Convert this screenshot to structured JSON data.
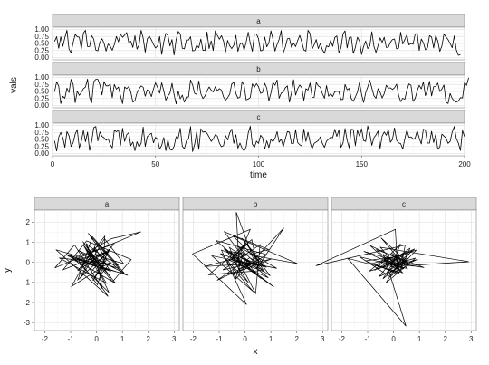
{
  "chart_data": [
    {
      "type": "line",
      "facet_layout": "stacked-rows",
      "xlabel": "time",
      "ylabel": "vals",
      "xlim": [
        0,
        200
      ],
      "ylim": [
        0,
        1
      ],
      "x_ticks": [
        0,
        50,
        100,
        150,
        200
      ],
      "y_ticks": [
        0.0,
        0.25,
        0.5,
        0.75,
        1.0
      ],
      "y_tick_labels": [
        "0.00",
        "0.25",
        "0.50",
        "0.75",
        "1.00"
      ],
      "grid": true,
      "series": [
        {
          "name": "a",
          "x_start": 1,
          "values": [
            0.57,
            0.74,
            0.33,
            0.74,
            0.4,
            0.71,
            0.97,
            0.3,
            0.17,
            0.53,
            0.82,
            0.74,
            0.72,
            0.31,
            0.87,
            0.97,
            0.39,
            0.39,
            0.78,
            0.66,
            0.27,
            0.24,
            0.55,
            0.67,
            0.51,
            0.23,
            0.48,
            0.4,
            0.26,
            0.46,
            0.75,
            0.56,
            0.83,
            0.72,
            0.8,
            0.89,
            0.54,
            0.58,
            0.36,
            0.78,
            0.3,
            0.45,
            0.97,
            0.69,
            0.19,
            0.66,
            0.76,
            0.63,
            0.47,
            0.34,
            0.42,
            0.75,
            0.11,
            0.56,
            0.86,
            0.79,
            0.41,
            0.64,
            0.09,
            0.64,
            0.93,
            0.84,
            0.33,
            0.31,
            0.63,
            0.62,
            0.74,
            0.24,
            0.25,
            0.44,
            0.35,
            0.66,
            0.26,
            0.25,
            0.91,
            0.32,
            0.59,
            0.25,
            0.95,
            0.79,
            0.65,
            0.78,
            0.59,
            0.2,
            0.61,
            0.42,
            0.32,
            0.44,
            0.79,
            0.22,
            0.47,
            0.53,
            0.26,
            0.55,
            0.9,
            0.51,
            0.22,
            0.83,
            0.84,
            0.66,
            0.24,
            0.26,
            0.73,
            0.38,
            0.52,
            0.95,
            0.65,
            0.23,
            0.46,
            0.65,
            0.96,
            0.17,
            0.37,
            0.67,
            0.68,
            0.36,
            0.51,
            0.39,
            0.61,
            0.79,
            0.55,
            0.27,
            0.23,
            0.97,
            0.85,
            0.3,
            0.45,
            0.64,
            0.32,
            0.5,
            0.28,
            0.15,
            0.42,
            0.38,
            0.61,
            0.4,
            0.71,
            0.77,
            0.17,
            0.34,
            0.84,
            0.95,
            0.34,
            0.71,
            0.73,
            0.15,
            0.36,
            0.72,
            0.59,
            0.11,
            0.39,
            0.59,
            0.32,
            0.41,
            0.92,
            0.4,
            0.18,
            0.42,
            0.7,
            0.54,
            0.72,
            0.36,
            0.37,
            0.54,
            0.64,
            0.66,
            0.31,
            0.34,
            0.9,
            0.48,
            0.64,
            0.81,
            0.45,
            0.5,
            0.47,
            0.82,
            0.87,
            0.25,
            0.66,
            0.53,
            0.28,
            0.34,
            0.78,
            0.73,
            0.34,
            0.78,
            0.59,
            0.22,
            0.41,
            0.84,
            0.73,
            0.64,
            0.5,
            0.35,
            0.77,
            0.28,
            0.08,
            0.1
          ]
        },
        {
          "name": "b",
          "x_start": 1,
          "values": [
            0.49,
            0.84,
            0.69,
            0.07,
            0.33,
            0.26,
            0.62,
            0.46,
            0.93,
            0.76,
            0.1,
            0.51,
            0.36,
            0.47,
            0.6,
            0.66,
            0.94,
            0.29,
            0.1,
            0.85,
            0.93,
            0.93,
            0.73,
            0.38,
            0.85,
            0.7,
            0.7,
            0.76,
            0.28,
            0.75,
            0.58,
            0.66,
            0.35,
            0.07,
            0.66,
            0.6,
            0.68,
            0.48,
            0.12,
            0.18,
            0.45,
            0.59,
            0.7,
            0.65,
            0.33,
            0.56,
            0.5,
            0.32,
            0.59,
            0.81,
            0.64,
            0.44,
            0.81,
            0.52,
            0.19,
            0.34,
            0.44,
            0.79,
            0.39,
            0.06,
            0.52,
            0.24,
            0.37,
            0.12,
            0.31,
            0.3,
            0.91,
            0.73,
            0.43,
            0.4,
            0.87,
            0.42,
            0.25,
            0.34,
            0.52,
            0.66,
            0.55,
            0.48,
            0.67,
            0.52,
            0.6,
            0.55,
            0.31,
            0.19,
            0.28,
            0.4,
            0.77,
            0.82,
            0.43,
            0.26,
            0.3,
            0.85,
            0.72,
            0.2,
            0.23,
            0.29,
            0.77,
            0.65,
            0.78,
            0.67,
            0.43,
            0.47,
            0.79,
            0.62,
            0.16,
            0.44,
            0.82,
            0.72,
            0.91,
            0.26,
            0.44,
            0.48,
            0.63,
            0.7,
            0.12,
            0.46,
            0.92,
            0.37,
            0.6,
            0.73,
            0.63,
            0.18,
            0.6,
            0.55,
            0.8,
            0.3,
            0.29,
            0.82,
            0.7,
            0.65,
            0.42,
            0.26,
            0.71,
            0.33,
            0.42,
            0.32,
            0.49,
            0.51,
            0.5,
            0.21,
            0.22,
            0.75,
            0.56,
            0.61,
            0.25,
            0.15,
            0.31,
            0.48,
            0.82,
            0.4,
            0.11,
            0.45,
            0.66,
            0.9,
            0.62,
            0.35,
            0.26,
            0.6,
            0.47,
            0.27,
            0.42,
            0.72,
            0.62,
            0.63,
            0.57,
            0.63,
            0.76,
            0.36,
            0.14,
            0.26,
            0.22,
            0.54,
            0.77,
            0.72,
            0.15,
            0.25,
            0.52,
            0.72,
            0.59,
            0.84,
            0.35,
            0.55,
            0.86,
            0.34,
            0.67,
            0.68,
            0.8,
            0.5,
            0.59,
            0.73,
            0.12,
            0.07,
            0.43,
            0.25,
            0.17,
            0.12,
            0.16,
            0.28,
            0.27,
            0.82,
            0.72,
            0.99
          ]
        },
        {
          "name": "c",
          "x_start": 1,
          "values": [
            0.45,
            0.09,
            0.58,
            0.75,
            0.56,
            0.22,
            0.78,
            0.63,
            0.25,
            0.38,
            0.69,
            0.85,
            0.2,
            0.44,
            0.82,
            0.42,
            0.76,
            0.11,
            0.43,
            0.92,
            0.96,
            0.45,
            0.77,
            0.61,
            0.56,
            0.47,
            0.53,
            0.32,
            0.2,
            0.83,
            0.77,
            0.84,
            0.29,
            0.9,
            0.43,
            0.67,
            0.74,
            0.28,
            0.41,
            0.1,
            0.42,
            0.23,
            0.36,
            0.94,
            0.25,
            0.6,
            0.67,
            0.72,
            0.38,
            0.58,
            0.51,
            0.16,
            0.29,
            0.57,
            0.1,
            0.49,
            0.15,
            0.12,
            0.26,
            0.6,
            0.55,
            0.9,
            0.26,
            0.17,
            0.45,
            0.52,
            0.96,
            0.07,
            0.33,
            0.78,
            0.15,
            0.88,
            0.76,
            0.78,
            0.72,
            0.59,
            0.43,
            0.52,
            0.67,
            0.62,
            0.37,
            0.24,
            0.28,
            0.64,
            0.48,
            0.73,
            0.87,
            0.36,
            0.67,
            0.19,
            0.37,
            0.19,
            0.09,
            0.24,
            0.73,
            0.97,
            0.33,
            0.22,
            0.44,
            0.36,
            0.65,
            0.56,
            0.16,
            0.45,
            0.21,
            0.5,
            0.42,
            0.54,
            0.78,
            0.4,
            0.52,
            0.24,
            0.52,
            0.78,
            0.76,
            0.35,
            0.36,
            0.85,
            0.39,
            0.31,
            0.27,
            0.87,
            0.43,
            0.76,
            0.4,
            0.17,
            0.36,
            0.41,
            0.46,
            0.59,
            0.36,
            0.22,
            0.44,
            0.51,
            0.58,
            0.56,
            0.86,
            0.61,
            0.84,
            0.22,
            0.36,
            0.89,
            0.47,
            0.2,
            0.86,
            0.85,
            0.28,
            0.82,
            0.62,
            0.88,
            0.46,
            0.43,
            0.98,
            0.71,
            0.29,
            0.56,
            0.66,
            0.8,
            0.18,
            0.62,
            0.77,
            0.65,
            0.85,
            0.4,
            0.5,
            0.91,
            0.47,
            0.38,
            0.35,
            0.16,
            0.52,
            0.84,
            0.58,
            0.59,
            0.52,
            0.54,
            0.81,
            0.55,
            0.34,
            0.87,
            0.82,
            0.37,
            0.37,
            0.79,
            0.39,
            0.68,
            0.16,
            0.23,
            0.69,
            0.62,
            0.55,
            0.36,
            0.43,
            0.76,
            0.96,
            0.54,
            0.37,
            0.11,
            0.82,
            0.6
          ]
        }
      ]
    },
    {
      "type": "line",
      "facet_layout": "side-by-side",
      "xlabel": "x",
      "ylabel": "y",
      "xlim": [
        -2.4,
        3.2
      ],
      "ylim": [
        -3.4,
        2.6
      ],
      "x_ticks": [
        -2,
        -1,
        0,
        1,
        2,
        3
      ],
      "y_ticks": [
        -3,
        -2,
        -1,
        0,
        1,
        2
      ],
      "grid": true,
      "series": [
        {
          "name": "a",
          "x": [
            0.12,
            -0.53,
            0.57,
            -0.31,
            0.58,
            1.72,
            -1.61,
            -0.85,
            0.22,
            -0.07,
            0.54,
            -1.11,
            1.21,
            -0.28,
            0.38,
            -1.44,
            0.83,
            -0.16,
            -0.72,
            0.49,
            -0.84,
            1.09,
            -0.4,
            0.48,
            -1.02,
            0.25,
            -0.45,
            0.62,
            1.34,
            -0.38,
            -1.29,
            0.41,
            0.04,
            -0.79,
            0.66,
            -0.2,
            0.45,
            -1.57,
            0.86,
            -0.01,
            -0.62,
            0.31,
            1.05,
            -0.26,
            -0.96,
            0.55,
            0.14,
            -0.5,
            0.74,
            -1.18,
            0.27,
            0.32,
            -0.73,
            0.52,
            -0.14,
            0.4,
            -0.32,
            1.07,
            -0.7,
            0.02
          ],
          "y": [
            -0.16,
            1.04,
            -0.77,
            0.52,
            1.18,
            1.52,
            -0.28,
            0.87,
            -1.31,
            0.74,
            -0.44,
            0.32,
            -0.65,
            0.41,
            -1.04,
            0.22,
            -0.13,
            1.28,
            -0.87,
            0.55,
            0.08,
            -0.58,
            0.94,
            -1.5,
            0.36,
            -0.34,
            0.72,
            -0.97,
            0.14,
            1.07,
            -0.37,
            0.49,
            -1.12,
            0.27,
            0.9,
            -0.47,
            -1.7,
            0.63,
            -0.3,
            0.95,
            -0.81,
            1.18,
            -0.07,
            0.44,
            -1.2,
            0.02,
            -0.66,
            0.85,
            -1.05,
            0.39,
            -0.19,
            1.3,
            -0.42,
            0.67,
            -0.92,
            0.16,
            1.45,
            -0.53,
            0.6,
            -0.1
          ]
        },
        {
          "name": "b",
          "x": [
            0.4,
            -0.8,
            0.91,
            -1.57,
            0.39,
            -0.34,
            -0.22,
            0.85,
            -1.13,
            0.62,
            -0.32,
            0.41,
            0.58,
            -0.86,
            1.01,
            -0.51,
            0.2,
            -2.03,
            0.06,
            -0.91,
            0.56,
            1.5,
            -0.37,
            -0.04,
            -0.69,
            0.33,
            -1.29,
            0.81,
            -0.12,
            0.97,
            -0.6,
            -0.25,
            0.44,
            -1.08,
            0.18,
            0.72,
            -0.46,
            2.02,
            -0.71,
            0.13,
            -0.95,
            0.67,
            -0.29,
            1.23,
            -0.55,
            0.04,
            -1.4,
            0.52,
            0.26,
            -0.63,
            0.9,
            -0.17,
            0.38,
            -0.82,
            1.11,
            -0.49,
            0.09,
            0.75,
            -0.35,
            0.07
          ],
          "y": [
            -0.54,
            1.52,
            0.64,
            -0.21,
            -0.06,
            2.5,
            -0.43,
            0.38,
            1.09,
            -0.81,
            0.28,
            -1.55,
            0.88,
            -0.38,
            0.16,
            -0.59,
            1.64,
            0.42,
            -2.11,
            0.61,
            -0.11,
            1.71,
            -0.85,
            0.55,
            0.01,
            -1.47,
            0.33,
            -0.24,
            1.2,
            -0.67,
            0.74,
            -0.33,
            0.06,
            -0.9,
            0.23,
            -0.18,
            1.31,
            -0.06,
            0.57,
            -1.01,
            0.44,
            -0.37,
            0.82,
            -0.3,
            0.14,
            0.96,
            -0.62,
            -0.42,
            1.13,
            0.12,
            -0.77,
            0.36,
            -0.15,
            0.68,
            -1.22,
            0.21,
            0.9,
            -0.47,
            0.05,
            -0.04
          ]
        },
        {
          "name": "c",
          "x": [
            0.23,
            -0.62,
            0.71,
            -0.14,
            0.51,
            2.91,
            -0.51,
            0.35,
            -1.77,
            0.48,
            -0.38,
            0.29,
            0.45,
            -3.0,
            0.07,
            0.16,
            -0.82,
            0.88,
            -0.12,
            -1.32,
            0.53,
            -0.48,
            0.61,
            -0.06,
            -0.94,
            0.85,
            -0.29,
            0.37,
            -1.08,
            0.19,
            0.64,
            -0.21,
            0.42,
            -0.73,
            0.27,
            -0.09,
            0.94,
            -0.56,
            0.13,
            -0.35,
            1.18,
            -0.67,
            0.31,
            -0.18,
            0.66,
            -0.9,
            0.09,
            0.47,
            -0.41,
            0.2,
            -0.26,
            0.75,
            -1.15,
            0.4,
            0.03,
            -0.6,
            0.82,
            -0.23,
            0.56,
            0.04
          ],
          "y": [
            0.18,
            -0.36,
            0.58,
            -0.66,
            -0.17,
            0.03,
            0.75,
            -0.52,
            0.2,
            -3.18,
            0.39,
            -0.28,
            0.86,
            -0.17,
            1.64,
            -0.5,
            -0.06,
            0.61,
            -0.73,
            0.28,
            -0.31,
            1.22,
            -0.09,
            0.45,
            -0.44,
            0.21,
            -1.02,
            0.33,
            0.07,
            -0.58,
            0.71,
            -0.14,
            0.5,
            -0.4,
            0.92,
            -0.23,
            0.15,
            -0.71,
            0.36,
            0.03,
            -0.26,
            0.64,
            -0.48,
            0.24,
            -0.11,
            0.83,
            -0.35,
            0.11,
            -0.82,
            0.42,
            0.08,
            -0.19,
            0.55,
            -0.33,
            0.27,
            -0.06,
            0.67,
            -0.45,
            0.19,
            0.14
          ]
        }
      ]
    }
  ],
  "colors": {
    "panel_bg": "#ffffff",
    "panel_border": "#7f7f7f",
    "strip_bg": "#d9d9d9",
    "grid_major": "#e2e2e2",
    "grid_minor": "#f1f1f1",
    "line": "#000000"
  }
}
